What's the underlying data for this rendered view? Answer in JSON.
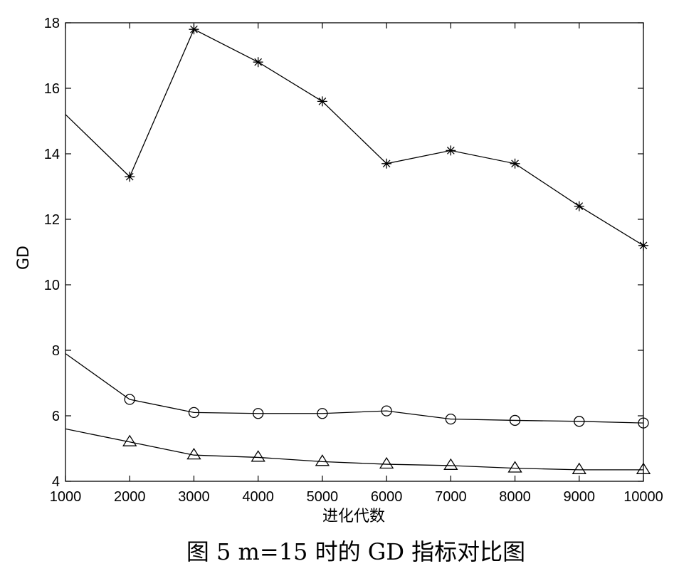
{
  "chart_data": {
    "type": "line",
    "title": "",
    "xlabel": "进化代数",
    "ylabel": "GD",
    "x": [
      1000,
      2000,
      3000,
      4000,
      5000,
      6000,
      7000,
      8000,
      9000,
      10000
    ],
    "xlim": [
      1000,
      10000
    ],
    "ylim": [
      4,
      18
    ],
    "xticks": [
      1000,
      2000,
      3000,
      4000,
      5000,
      6000,
      7000,
      8000,
      9000,
      10000
    ],
    "yticks": [
      4,
      6,
      8,
      10,
      12,
      14,
      16,
      18
    ],
    "grid": false,
    "legend": "none",
    "series": [
      {
        "marker": "star",
        "values": [
          15.2,
          13.3,
          17.8,
          16.8,
          15.6,
          13.7,
          14.1,
          13.7,
          12.4,
          11.2
        ]
      },
      {
        "marker": "circle",
        "values": [
          7.9,
          6.5,
          6.1,
          6.07,
          6.07,
          6.15,
          5.9,
          5.86,
          5.83,
          5.78
        ]
      },
      {
        "marker": "triangle",
        "values": [
          5.6,
          5.2,
          4.8,
          4.73,
          4.6,
          4.52,
          4.48,
          4.4,
          4.35,
          4.35
        ]
      }
    ]
  },
  "caption": "图 5  m=15 时的 GD 指标对比图"
}
